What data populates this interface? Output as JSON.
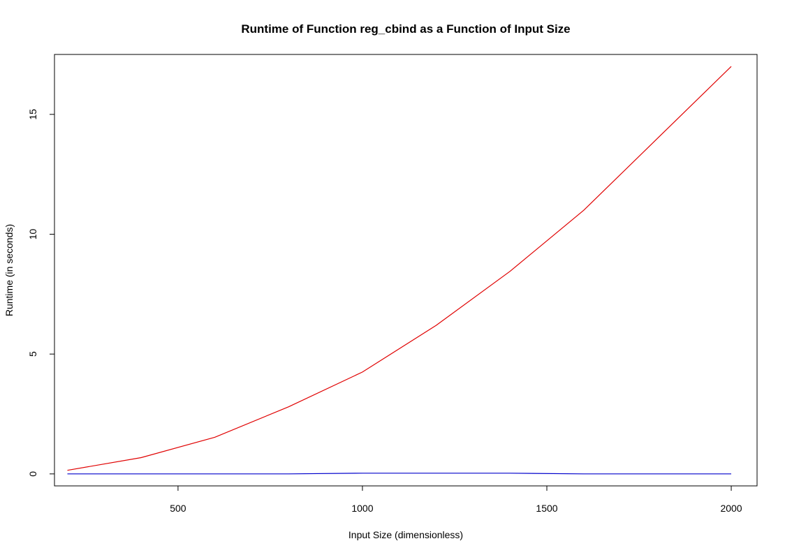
{
  "chart_data": {
    "type": "line",
    "title": "Runtime of Function reg_cbind as a Function of Input Size",
    "xlabel": "Input Size (dimensionless)",
    "ylabel": "Runtime (in seconds)",
    "xlim": [
      165,
      2070
    ],
    "ylim": [
      -0.5,
      17.5
    ],
    "x_ticks": [
      500,
      1000,
      1500,
      2000
    ],
    "y_ticks": [
      0,
      5,
      10,
      15
    ],
    "grid": false,
    "legend": "none",
    "x": [
      200,
      400,
      600,
      800,
      1000,
      1200,
      1400,
      1600,
      1800,
      2000
    ],
    "series": [
      {
        "color": "#e00000",
        "values": [
          0.15,
          0.68,
          1.53,
          2.8,
          4.25,
          6.2,
          8.45,
          11.0,
          14.0,
          17.0
        ]
      },
      {
        "color": "#0000cc",
        "values": [
          0.0,
          0.0,
          0.0,
          0.0,
          0.03,
          0.03,
          0.03,
          0.0,
          0.0,
          0.0
        ]
      }
    ]
  }
}
